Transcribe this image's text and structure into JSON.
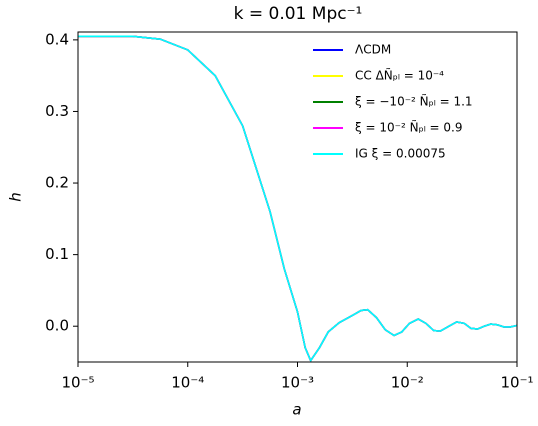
{
  "chart_data": {
    "type": "line",
    "title": "k = 0.01   Mpc⁻¹",
    "xlabel": "a",
    "ylabel": "h",
    "xscale": "log",
    "legend": "upper right",
    "x": [
      1e-05,
      3.162e-05,
      5.623e-05,
      0.0001,
      0.0001778,
      0.0003162,
      0.0005623,
      0.0007586,
      0.001,
      0.001175,
      0.001318,
      0.001585,
      0.001905,
      0.002399,
      0.003162,
      0.003802,
      0.004365,
      0.005248,
      0.00631,
      0.007586,
      0.008913,
      0.01047,
      0.01259,
      0.01479,
      0.01738,
      0.01995,
      0.02399,
      0.02818,
      0.03311,
      0.03802,
      0.04365,
      0.05012,
      0.05754,
      0.06607,
      0.07586,
      0.0871,
      0.1
    ],
    "series": [
      {
        "name": "ΛCDM",
        "color": "#0000ff",
        "values": [
          0.405,
          0.405,
          0.401,
          0.386,
          0.35,
          0.28,
          0.16,
          0.08,
          0.02,
          -0.03,
          -0.048,
          -0.03,
          -0.008,
          0.005,
          0.015,
          0.022,
          0.023,
          0.012,
          -0.005,
          -0.013,
          -0.008,
          0.004,
          0.01,
          0.004,
          -0.006,
          -0.007,
          0.0,
          0.006,
          0.004,
          -0.003,
          -0.004,
          0.0,
          0.003,
          0.002,
          -0.001,
          -0.001,
          0.001
        ]
      },
      {
        "name": "CC ΔÑₚₗ = 10⁻⁴",
        "color": "#ffff00",
        "values": [
          0.405,
          0.405,
          0.401,
          0.386,
          0.35,
          0.28,
          0.16,
          0.08,
          0.02,
          -0.03,
          -0.048,
          -0.03,
          -0.008,
          0.005,
          0.015,
          0.022,
          0.023,
          0.012,
          -0.005,
          -0.013,
          -0.008,
          0.004,
          0.01,
          0.004,
          -0.006,
          -0.007,
          0.0,
          0.006,
          0.004,
          -0.003,
          -0.004,
          0.0,
          0.003,
          0.002,
          -0.001,
          -0.001,
          0.001
        ]
      },
      {
        "name": "ξ = −10⁻²  Ñₚₗ = 1.1",
        "color": "#008000",
        "values": [
          0.405,
          0.405,
          0.401,
          0.386,
          0.35,
          0.28,
          0.16,
          0.08,
          0.02,
          -0.03,
          -0.048,
          -0.03,
          -0.008,
          0.005,
          0.015,
          0.022,
          0.023,
          0.012,
          -0.005,
          -0.013,
          -0.008,
          0.004,
          0.01,
          0.004,
          -0.006,
          -0.007,
          0.0,
          0.006,
          0.004,
          -0.003,
          -0.004,
          0.0,
          0.003,
          0.002,
          -0.001,
          -0.001,
          0.001
        ]
      },
      {
        "name": "ξ = 10⁻²  Ñₚₗ = 0.9",
        "color": "#ff00ff",
        "values": [
          0.405,
          0.405,
          0.401,
          0.386,
          0.35,
          0.28,
          0.16,
          0.08,
          0.02,
          -0.03,
          -0.048,
          -0.03,
          -0.008,
          0.005,
          0.015,
          0.022,
          0.023,
          0.012,
          -0.005,
          -0.013,
          -0.008,
          0.004,
          0.01,
          0.004,
          -0.006,
          -0.007,
          0.0,
          0.006,
          0.004,
          -0.003,
          -0.004,
          0.0,
          0.003,
          0.002,
          -0.001,
          -0.001,
          0.001
        ]
      },
      {
        "name": "IG ξ = 0.00075",
        "color": "#00ffff",
        "values": [
          0.405,
          0.405,
          0.401,
          0.386,
          0.35,
          0.28,
          0.16,
          0.08,
          0.02,
          -0.03,
          -0.048,
          -0.03,
          -0.008,
          0.005,
          0.015,
          0.022,
          0.023,
          0.012,
          -0.005,
          -0.013,
          -0.008,
          0.004,
          0.01,
          0.004,
          -0.006,
          -0.007,
          0.0,
          0.006,
          0.004,
          -0.003,
          -0.004,
          0.0,
          0.003,
          0.002,
          -0.001,
          -0.001,
          0.001
        ]
      }
    ],
    "xlim": [
      1e-05,
      0.1
    ],
    "xticks": [
      {
        "value": 1e-05,
        "label": "10⁻⁵"
      },
      {
        "value": 0.0001,
        "label": "10⁻⁴"
      },
      {
        "value": 0.001,
        "label": "10⁻³"
      },
      {
        "value": 0.01,
        "label": "10⁻²"
      },
      {
        "value": 0.1,
        "label": "10⁻¹"
      }
    ],
    "ylim": [
      -0.05,
      0.411
    ],
    "yticks": [
      {
        "value": 0,
        "label": "0.0"
      },
      0.1,
      0.2,
      0.3,
      0.4
    ],
    "grid": false
  }
}
